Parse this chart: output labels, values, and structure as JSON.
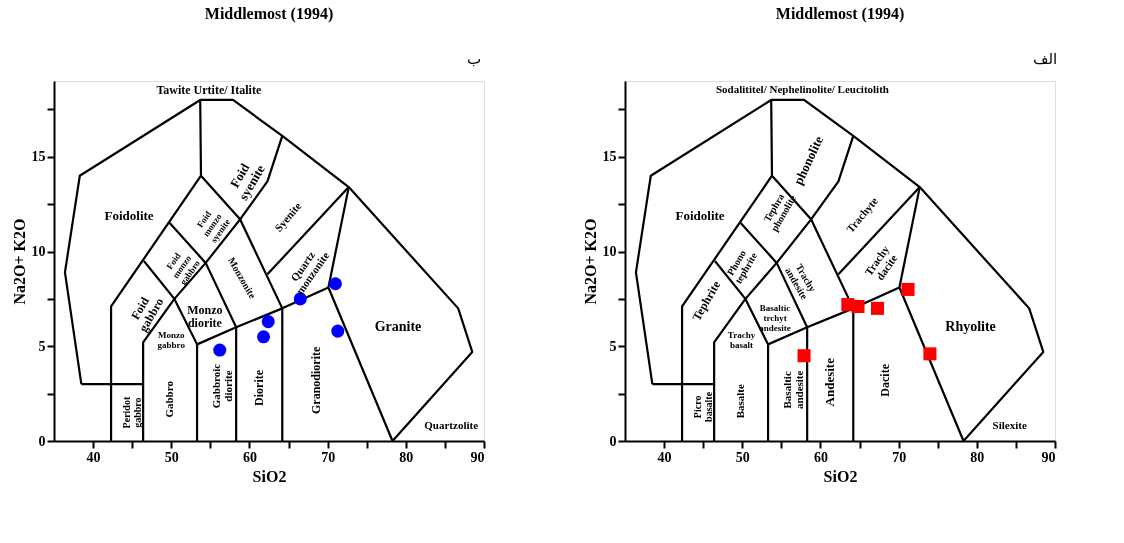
{
  "chart_data": [
    {
      "type": "scatter",
      "title": "Middlemost (1994)",
      "xlabel": "SiO2",
      "ylabel": "Na2O+ K2O",
      "xlim": [
        35,
        90
      ],
      "ylim": [
        0,
        19
      ],
      "xticks": [
        40,
        {
          "value": 45,
          "label": null
        },
        50,
        {
          "value": 55,
          "label": null
        },
        60,
        {
          "value": 65,
          "label": null
        },
        70,
        {
          "value": 75,
          "label": null
        },
        80,
        {
          "value": 85,
          "label": null
        },
        90
      ],
      "yticks": [
        0,
        {
          "value": 2.5,
          "label": null
        },
        5,
        {
          "value": 7.5,
          "label": null
        },
        10,
        {
          "value": 12.5,
          "label": null
        },
        15,
        {
          "value": 17.5,
          "label": null
        }
      ],
      "grid": false,
      "series": [
        {
          "type": "line",
          "color": "#000000",
          "x": [
            38.5,
            36.4,
            38.3,
            53.7,
            57.9,
            64.2,
            72.7,
            86.7,
            88.5,
            78.3
          ],
          "values": [
            3,
            8.9,
            14,
            18,
            18,
            16.1,
            13.4,
            7.0,
            4.7,
            0
          ]
        },
        {
          "type": "line",
          "color": "#000000",
          "x": [
            38.5,
            46.4
          ],
          "values": [
            3,
            3
          ]
        },
        {
          "type": "line",
          "color": "#000000",
          "x": [
            42.3,
            42.3,
            53.8,
            53.7
          ],
          "values": [
            0,
            7.1,
            14,
            18
          ]
        },
        {
          "type": "line",
          "color": "#000000",
          "x": [
            53.8,
            58.8,
            64.2,
            64.2
          ],
          "values": [
            14,
            11.7,
            7.0,
            0
          ]
        },
        {
          "type": "line",
          "color": "#000000",
          "x": [
            46.4,
            46.4,
            50.4,
            54.4,
            58.8,
            62.3,
            64.2
          ],
          "values": [
            0,
            5.2,
            7.5,
            9.4,
            11.7,
            13.7,
            16.1
          ]
        },
        {
          "type": "line",
          "color": "#000000",
          "x": [
            46.5,
            50.4,
            53.3,
            53.3
          ],
          "values": [
            9.5,
            7.5,
            5.1,
            0
          ]
        },
        {
          "type": "line",
          "color": "#000000",
          "x": [
            49.8,
            54.4,
            58.3,
            58.3
          ],
          "values": [
            11.5,
            9.4,
            6.0,
            0
          ]
        },
        {
          "type": "line",
          "color": "#000000",
          "x": [
            53.3,
            58.3,
            64.2,
            70.1
          ],
          "values": [
            5.1,
            6.0,
            7.0,
            8.1
          ]
        },
        {
          "type": "line",
          "color": "#000000",
          "x": [
            72.7,
            70.1,
            78.3
          ],
          "values": [
            13.4,
            8.1,
            0
          ]
        },
        {
          "type": "line",
          "color": "#000000",
          "x": [
            72.7,
            62.3
          ],
          "values": [
            13.4,
            8.8
          ]
        },
        {
          "color": "#0000ff",
          "marker": "circle",
          "x": [
            56.2,
            61.8,
            62.4,
            66.5,
            71.0,
            71.3
          ],
          "values": [
            4.8,
            5.5,
            6.3,
            7.5,
            8.3,
            5.8
          ]
        }
      ],
      "annotations": [
        "ب",
        "Tawite Urtite/ Italite",
        "Foidolite",
        "Foid\nsyenite",
        "Foid\nmonzo\nsyenite",
        "Syenite",
        "Foid\nmonzo\ngabbro",
        "Monzonite",
        "Quartz\nmonzonite",
        "Foid\ngabbro",
        "Monzo\ndiorite",
        "Monzo\ngabbro",
        "Granite",
        "Peridot\ngabbro",
        "Gabbro",
        "Gabbroic\ndiorite",
        "Diorite",
        "Granodiorite",
        "Quartzolite"
      ]
    },
    {
      "type": "scatter",
      "title": "Middlemost (1994)",
      "xlabel": "SiO2",
      "ylabel": "Na2O+ K2O",
      "xlim": [
        35,
        90
      ],
      "ylim": [
        0,
        19
      ],
      "xticks": [
        40,
        {
          "value": 45,
          "label": null
        },
        50,
        {
          "value": 55,
          "label": null
        },
        60,
        {
          "value": 65,
          "label": null
        },
        70,
        {
          "value": 75,
          "label": null
        },
        80,
        {
          "value": 85,
          "label": null
        },
        90
      ],
      "yticks": [
        0,
        {
          "value": 2.5,
          "label": null
        },
        5,
        {
          "value": 7.5,
          "label": null
        },
        10,
        {
          "value": 12.5,
          "label": null
        },
        15,
        {
          "value": 17.5,
          "label": null
        }
      ],
      "grid": false,
      "series": [
        {
          "type": "line",
          "color": "#000000",
          "x": [
            38.5,
            36.4,
            38.3,
            53.7,
            57.9,
            64.2,
            72.7,
            86.7,
            88.5,
            78.3
          ],
          "values": [
            3,
            8.9,
            14,
            18,
            18,
            16.1,
            13.4,
            7.0,
            4.7,
            0
          ]
        },
        {
          "type": "line",
          "color": "#000000",
          "x": [
            38.5,
            46.4
          ],
          "values": [
            3,
            3
          ]
        },
        {
          "type": "line",
          "color": "#000000",
          "x": [
            42.3,
            42.3,
            53.8,
            53.7
          ],
          "values": [
            0,
            7.1,
            14,
            18
          ]
        },
        {
          "type": "line",
          "color": "#000000",
          "x": [
            53.8,
            58.8,
            64.2,
            64.2
          ],
          "values": [
            14,
            11.7,
            7.0,
            0
          ]
        },
        {
          "type": "line",
          "color": "#000000",
          "x": [
            46.4,
            46.4,
            50.4,
            54.4,
            58.8,
            62.3,
            64.2
          ],
          "values": [
            0,
            5.2,
            7.5,
            9.4,
            11.7,
            13.7,
            16.1
          ]
        },
        {
          "type": "line",
          "color": "#000000",
          "x": [
            46.5,
            50.4,
            53.3,
            53.3
          ],
          "values": [
            9.5,
            7.5,
            5.1,
            0
          ]
        },
        {
          "type": "line",
          "color": "#000000",
          "x": [
            49.8,
            54.4,
            58.3,
            58.3
          ],
          "values": [
            11.5,
            9.4,
            6.0,
            0
          ]
        },
        {
          "type": "line",
          "color": "#000000",
          "x": [
            53.3,
            58.3,
            64.2,
            70.1
          ],
          "values": [
            5.1,
            6.0,
            7.0,
            8.1
          ]
        },
        {
          "type": "line",
          "color": "#000000",
          "x": [
            72.7,
            70.1,
            78.3
          ],
          "values": [
            13.4,
            8.1,
            0
          ]
        },
        {
          "type": "line",
          "color": "#000000",
          "x": [
            72.7,
            62.3
          ],
          "values": [
            13.4,
            8.8
          ]
        },
        {
          "color": "#ff0000",
          "marker": "square",
          "x": [
            57.9,
            63.5,
            64.8,
            67.3,
            71.2,
            74.0
          ],
          "values": [
            4.5,
            7.2,
            7.1,
            7.0,
            8.0,
            4.6
          ]
        }
      ],
      "annotations": [
        "الف",
        "Sodalititel/ Nephelinolite/ Leucitolith",
        "Foidolite",
        "phonolite",
        "Tephra\nphonolite",
        "Trachyte",
        "Phono\ntephrite",
        "Trachy\nandesite",
        "Trachy\ndacite",
        "Tephrite",
        "Basaltic\ntrchyt\nandesite",
        "Trachy\nbasalt",
        "Rhyolite",
        "Picro\nbasalte",
        "Basalte",
        "Basaltic\nandesite",
        "Andesite",
        "Dacite",
        "Silexite"
      ]
    }
  ]
}
